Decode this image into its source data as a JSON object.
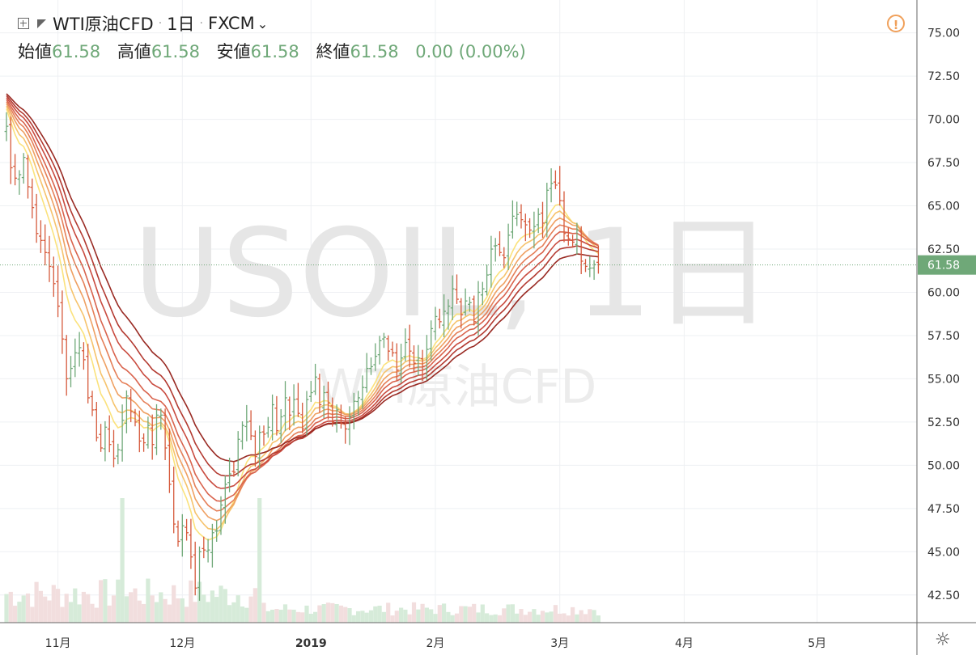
{
  "header": {
    "symbol": "WTI原油CFD",
    "interval": "1日",
    "broker": "FXCM",
    "broker_caret": "⌄"
  },
  "ohlc": {
    "open_label": "始値",
    "open": "61.58",
    "high_label": "高値",
    "high": "61.58",
    "low_label": "安値",
    "low": "61.58",
    "close_label": "終値",
    "close": "61.58",
    "change": "0.00 (0.00%)"
  },
  "watermark": {
    "main": "USOIL, 1日",
    "sub": "WTI原油CFD"
  },
  "alert_icon": "!",
  "gear_icon": "☼",
  "colors": {
    "up": "#6fa878",
    "down": "#d65a3c",
    "vol_up": "#d6ebd9",
    "vol_down": "#f2dede",
    "price_badge": "#6fa878"
  },
  "chart_data": {
    "type": "ohlc",
    "y_axis": {
      "ticks": [
        "75.00",
        "72.50",
        "70.00",
        "67.50",
        "65.00",
        "62.50",
        "60.00",
        "57.50",
        "55.00",
        "52.50",
        "50.00",
        "47.50",
        "45.00",
        "42.50"
      ],
      "range": [
        40.9,
        76.9
      ]
    },
    "x_axis": {
      "labels": [
        "11月",
        "12月",
        "2019",
        "2月",
        "3月",
        "4月",
        "5月"
      ],
      "label_bars": [
        12,
        41,
        71,
        100,
        129,
        158,
        189
      ]
    },
    "last_price": "61.58",
    "closes": [
      69.6,
      67.2,
      66.6,
      66.8,
      67.8,
      66.1,
      64.9,
      63.4,
      63.0,
      62.3,
      61.5,
      60.5,
      59.2,
      57.3,
      55.0,
      55.6,
      56.5,
      56.8,
      56.1,
      53.9,
      53.2,
      51.6,
      51.0,
      52.2,
      51.2,
      50.4,
      50.9,
      52.6,
      54.0,
      53.1,
      52.5,
      51.4,
      51.3,
      52.3,
      51.2,
      52.9,
      52.9,
      51.0,
      48.9,
      46.6,
      45.6,
      46.5,
      46.1,
      44.7,
      42.9,
      45.0,
      45.1,
      45.1,
      46.1,
      46.2,
      47.7,
      48.9,
      49.5,
      49.6,
      51.5,
      52.3,
      52.5,
      51.7,
      50.5,
      51.9,
      51.8,
      52.2,
      53.5,
      52.0,
      52.8,
      53.9,
      52.9,
      53.8,
      53.0,
      52.1,
      53.8,
      54.2,
      55.1,
      53.5,
      54.2,
      53.6,
      52.5,
      53.2,
      52.4,
      52.1,
      52.8,
      53.7,
      53.9,
      54.5,
      55.6,
      55.7,
      56.3,
      57.2,
      57.4,
      56.6,
      56.5,
      55.5,
      56.2,
      57.1,
      56.6,
      55.9,
      56.2,
      55.7,
      56.7,
      57.9,
      58.6,
      58.3,
      58.9,
      59.2,
      60.2,
      59.6,
      58.7,
      59.5,
      59.4,
      58.3,
      60.0,
      60.2,
      61.0,
      62.5,
      62.7,
      62.3,
      62.0,
      63.3,
      64.4,
      64.5,
      64.2,
      63.9,
      63.6,
      63.8,
      64.5,
      64.0,
      65.9,
      66.3,
      66.2,
      65.3,
      63.4,
      63.1,
      62.9,
      63.6,
      61.8,
      61.5,
      61.4,
      61.6,
      61.6
    ],
    "ma_ribbon": {
      "count": 8,
      "colors": [
        "#fbe27c",
        "#f6c36c",
        "#efa062",
        "#e57f58",
        "#d9634d",
        "#c94b3f",
        "#b33a31",
        "#992a23"
      ]
    },
    "volume": {
      "note": "relative heights shown as bars at bottom of plot"
    }
  }
}
